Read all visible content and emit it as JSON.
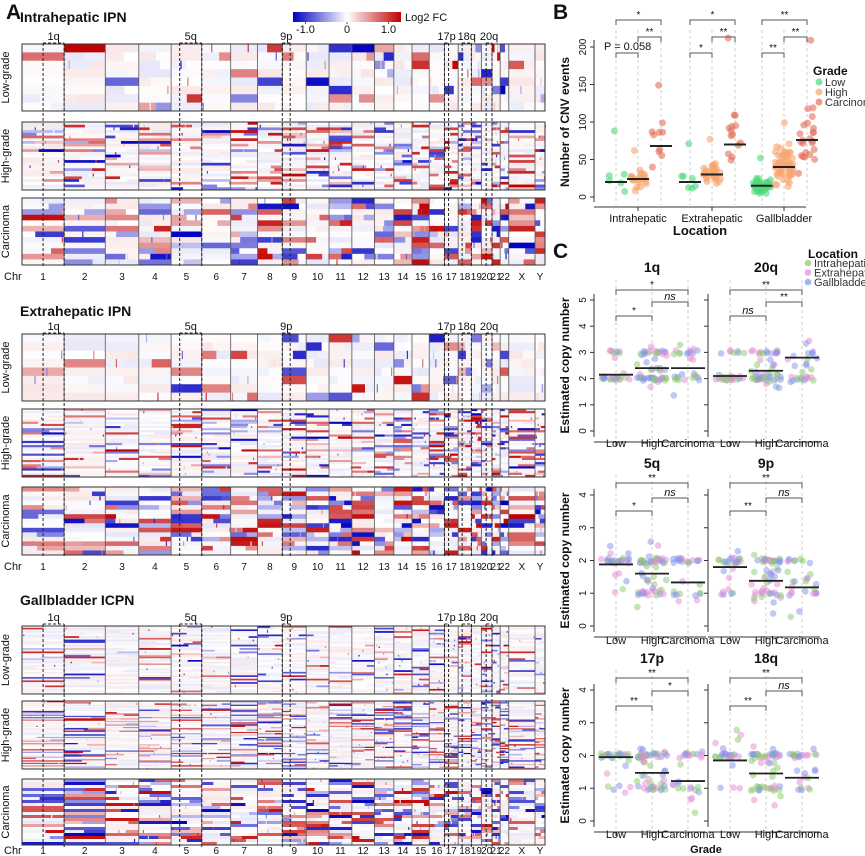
{
  "panel_labels": {
    "A": "A",
    "B": "B",
    "C": "C"
  },
  "chart_data": [
    {
      "type": "heatmap",
      "panel": "A",
      "xlabel": "Chr",
      "chromosomes": [
        "1",
        "2",
        "3",
        "4",
        "5",
        "6",
        "7",
        "8",
        "9",
        "10",
        "11",
        "12",
        "13",
        "14",
        "15",
        "16",
        "17",
        "18",
        "19",
        "20",
        "21",
        "22",
        "X",
        "Y"
      ],
      "regions": [
        "1q",
        "5q",
        "9p",
        "17p",
        "18q",
        "20q"
      ],
      "colorbar": {
        "label": "Log2 FC",
        "ticks": [
          "-1.0",
          "0",
          "1.0"
        ],
        "tick_values": [
          -1,
          0,
          1
        ],
        "range": [
          -1.3,
          1.3
        ],
        "low_color": "#0000c0",
        "mid_color": "#ffffff",
        "high_color": "#c00000"
      },
      "groups": [
        {
          "title": "Intrahepatic IPN",
          "blocks": [
            {
              "grade": "Low-grade",
              "rows": 8
            },
            {
              "grade": "High-grade",
              "rows": 25
            },
            {
              "grade": "Carcinoma",
              "rows": 12
            }
          ]
        },
        {
          "title": "Extrahepatic IPN",
          "blocks": [
            {
              "grade": "Low-grade",
              "rows": 8
            },
            {
              "grade": "High-grade",
              "rows": 32
            },
            {
              "grade": "Carcinoma",
              "rows": 15
            }
          ]
        },
        {
          "title": "Gallbladder ICPN",
          "blocks": [
            {
              "grade": "Low-grade",
              "rows": 40
            },
            {
              "grade": "High-grade",
              "rows": 55
            },
            {
              "grade": "Carcinoma",
              "rows": 22
            }
          ]
        }
      ]
    },
    {
      "type": "scatter",
      "panel": "B",
      "xlabel": "Location",
      "ylabel": "Number of CNV events",
      "ylim": [
        0,
        215
      ],
      "yticks": [
        "0",
        "50",
        "100",
        "150",
        "200"
      ],
      "ytick_values": [
        0,
        50,
        100,
        150,
        200
      ],
      "categories": [
        "Intrahepatic",
        "Extrahepatic",
        "Gallbladder"
      ],
      "legend": {
        "title": "Grade",
        "position": "right",
        "entries": [
          "Low",
          "High",
          "Carcinoma"
        ],
        "colors": [
          "#4fd87c",
          "#f8a56e",
          "#e2705a"
        ]
      },
      "medians": [
        [
          20,
          24,
          68
        ],
        [
          20,
          30,
          70
        ],
        [
          15,
          40,
          76
        ]
      ],
      "n": [
        [
          6,
          24,
          10
        ],
        [
          7,
          34,
          14
        ],
        [
          40,
          60,
          24
        ]
      ],
      "max_values": [
        [
          88,
          62,
          149
        ],
        [
          71,
          77,
          212
        ],
        [
          52,
          99,
          209
        ]
      ],
      "significance": [
        {
          "low_high": "P = 0.058",
          "high_carcinoma": "**",
          "low_carcinoma": "*"
        },
        {
          "low_high": "*",
          "high_carcinoma": "**",
          "low_carcinoma": "*"
        },
        {
          "low_high": "**",
          "high_carcinoma": "**",
          "low_carcinoma": "**"
        }
      ]
    },
    {
      "type": "scatter",
      "panel": "C",
      "xlabel": "Grade",
      "ylabel": "Estimated copy number",
      "categories": [
        "Low",
        "High",
        "Carcinoma"
      ],
      "legend": {
        "title": "Location",
        "position": "top-right",
        "entries": [
          "Intrahepatic",
          "Extrahepatic",
          "Gallbladder"
        ],
        "colors": [
          "#8cc96a",
          "#e58bd2",
          "#7f93ea"
        ]
      },
      "subplots": [
        {
          "title": "1q",
          "ylim": [
            0,
            5
          ],
          "yticks": [
            "0",
            "1",
            "2",
            "3",
            "4",
            "5"
          ],
          "medians": [
            2.15,
            2.4,
            2.4
          ],
          "significance": {
            "low_high": "*",
            "high_carcinoma": "ns",
            "low_carcinoma": "*"
          }
        },
        {
          "title": "20q",
          "ylim": [
            0,
            5
          ],
          "yticks": [
            "0",
            "1",
            "2",
            "3",
            "4",
            "5"
          ],
          "medians": [
            2.1,
            2.3,
            2.8
          ],
          "significance": {
            "low_high": "ns",
            "high_carcinoma": "**",
            "low_carcinoma": "**"
          }
        },
        {
          "title": "5q",
          "ylim": [
            0,
            4
          ],
          "yticks": [
            "0",
            "1",
            "2",
            "3",
            "4"
          ],
          "medians": [
            1.88,
            1.6,
            1.33
          ],
          "significance": {
            "low_high": "*",
            "high_carcinoma": "ns",
            "low_carcinoma": "**"
          }
        },
        {
          "title": "9p",
          "ylim": [
            0,
            4
          ],
          "yticks": [
            "0",
            "1",
            "2",
            "3",
            "4"
          ],
          "medians": [
            1.8,
            1.38,
            1.18
          ],
          "significance": {
            "low_high": "**",
            "high_carcinoma": "ns",
            "low_carcinoma": "**"
          }
        },
        {
          "title": "17p",
          "ylim": [
            0,
            4
          ],
          "yticks": [
            "0",
            "1",
            "2",
            "3",
            "4"
          ],
          "medians": [
            1.95,
            1.47,
            1.22
          ],
          "significance": {
            "low_high": "**",
            "high_carcinoma": "*",
            "low_carcinoma": "**"
          }
        },
        {
          "title": "18q",
          "ylim": [
            0,
            4
          ],
          "yticks": [
            "0",
            "1",
            "2",
            "3",
            "4"
          ],
          "medians": [
            1.85,
            1.45,
            1.32
          ],
          "significance": {
            "low_high": "**",
            "high_carcinoma": "ns",
            "low_carcinoma": "**"
          }
        }
      ]
    }
  ]
}
